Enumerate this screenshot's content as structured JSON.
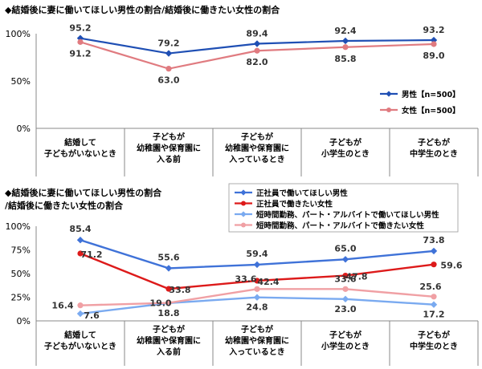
{
  "chart_data": [
    {
      "type": "line",
      "title": "◆結婚後に妻に働いてほしい男性の割合/結婚後に働きたい女性の割合",
      "categories": [
        [
          "結婚して",
          "子どもがいないとき"
        ],
        [
          "子どもが",
          "幼稚園や保育園に",
          "入る前"
        ],
        [
          "子どもが",
          "幼稚園や保育園に",
          "入っているとき"
        ],
        [
          "子どもが",
          "小学生のとき"
        ],
        [
          "子どもが",
          "中学生のとき"
        ]
      ],
      "ylim": [
        0,
        100
      ],
      "yticks": [
        "0%",
        "50%",
        "100%"
      ],
      "legend_position": "right",
      "series": [
        {
          "name": "男性【n=500】",
          "values": [
            95.2,
            79.2,
            89.4,
            92.4,
            93.2
          ],
          "labels": [
            "95.2",
            "79.2",
            "89.4",
            "92.4",
            "93.2"
          ],
          "color": "#1f4fb4",
          "marker": "diamond"
        },
        {
          "name": "女性【n=500】",
          "values": [
            91.2,
            63.0,
            82.0,
            85.8,
            89.0
          ],
          "labels": [
            "91.2",
            "63.0",
            "82.0",
            "85.8",
            "89.0"
          ],
          "color": "#e07b80",
          "marker": "circle"
        }
      ]
    },
    {
      "type": "line",
      "title": [
        "◆結婚後に妻に働いてほしい男性の割合",
        "/結婚後に働きたい女性の割合"
      ],
      "categories": [
        [
          "結婚して",
          "子どもがいないとき"
        ],
        [
          "子どもが",
          "幼稚園や保育園に",
          "入る前"
        ],
        [
          "子どもが",
          "幼稚園や保育園に",
          "入っているとき"
        ],
        [
          "子どもが",
          "小学生のとき"
        ],
        [
          "子どもが",
          "中学生のとき"
        ]
      ],
      "ylim": [
        0,
        100
      ],
      "yticks": [
        "0%",
        "25%",
        "50%",
        "75%",
        "100%"
      ],
      "legend_position": "top",
      "series": [
        {
          "name": "正社員で働いてほしい男性",
          "values": [
            85.4,
            55.6,
            59.4,
            65.0,
            73.8
          ],
          "labels": [
            "85.4",
            "55.6",
            "59.4",
            "65.0",
            "73.8"
          ],
          "color": "#3f72d8",
          "marker": "diamond"
        },
        {
          "name": "正社員で働きたい女性",
          "values": [
            71.2,
            33.8,
            42.4,
            47.8,
            59.6
          ],
          "labels": [
            "71.2",
            "33.8",
            "42.4",
            "47.8",
            "59.6"
          ],
          "color": "#dd1a1a",
          "marker": "circle"
        },
        {
          "name": "短時間勤務、パート・アルバイトで働いてほしい男性",
          "values": [
            7.6,
            18.8,
            24.8,
            23.0,
            17.2
          ],
          "labels": [
            "7.6",
            "18.8",
            "24.8",
            "23.0",
            "17.2"
          ],
          "color": "#7aaaf0",
          "marker": "diamond"
        },
        {
          "name": "短時間勤務、パート・アルバイトで働きたい女性",
          "values": [
            16.4,
            19.0,
            33.6,
            33.6,
            25.6
          ],
          "labels": [
            "16.4",
            "19.0",
            "33.6",
            "33.6",
            "25.6"
          ],
          "color": "#f0a0a4",
          "marker": "circle"
        }
      ]
    }
  ]
}
